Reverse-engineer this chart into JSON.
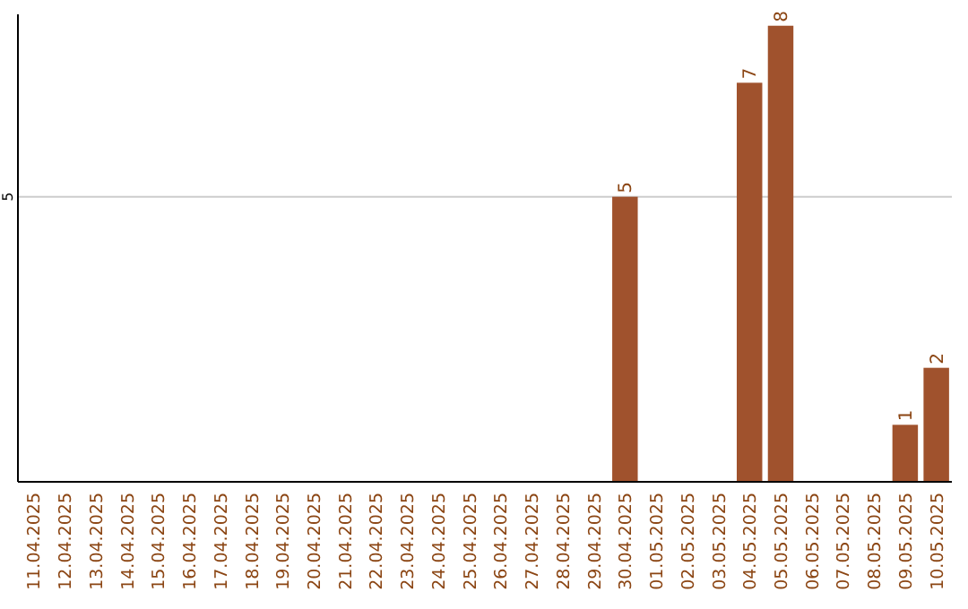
{
  "chart_data": {
    "type": "bar",
    "categories": [
      "11.04.2025",
      "12.04.2025",
      "13.04.2025",
      "14.04.2025",
      "15.04.2025",
      "16.04.2025",
      "17.04.2025",
      "18.04.2025",
      "19.04.2025",
      "20.04.2025",
      "21.04.2025",
      "22.04.2025",
      "23.04.2025",
      "24.04.2025",
      "25.04.2025",
      "26.04.2025",
      "27.04.2025",
      "28.04.2025",
      "29.04.2025",
      "30.04.2025",
      "01.05.2025",
      "02.05.2025",
      "03.05.2025",
      "04.05.2025",
      "05.05.2025",
      "06.05.2025",
      "07.05.2025",
      "08.05.2025",
      "09.05.2025",
      "10.05.2025"
    ],
    "values": [
      null,
      null,
      null,
      null,
      null,
      null,
      null,
      null,
      null,
      null,
      null,
      null,
      null,
      null,
      null,
      null,
      null,
      null,
      null,
      5,
      null,
      null,
      null,
      7,
      8,
      null,
      null,
      null,
      1,
      2
    ],
    "data_labels": true,
    "color": "#a0522d",
    "ylim": [
      0,
      8.2
    ],
    "yticks": [
      5
    ],
    "grid": "y"
  }
}
